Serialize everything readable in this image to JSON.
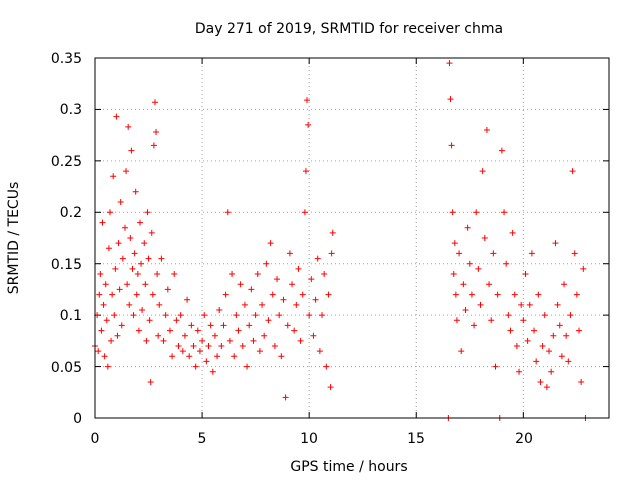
{
  "chart_data": {
    "type": "scatter",
    "title": "Day 271 of 2019, SRMTID for receiver chma",
    "xlabel": "GPS time / hours",
    "ylabel": "SRMTID / TECUs",
    "xlim": [
      0,
      24
    ],
    "ylim": [
      0,
      0.35
    ],
    "x_ticks": [
      0,
      5,
      10,
      15,
      20
    ],
    "x_tick_labels": [
      "0",
      "5",
      "10",
      "15",
      "20"
    ],
    "y_ticks": [
      0,
      0.05,
      0.1,
      0.15,
      0.2,
      0.25,
      0.3,
      0.35
    ],
    "y_tick_labels": [
      "0",
      "0.05",
      "0.1",
      "0.15",
      "0.2",
      "0.25",
      "0.3",
      "0.35"
    ],
    "grid": true,
    "marker": "+",
    "color": "#ff0000",
    "series": [
      {
        "name": "SRMTID",
        "points": [
          [
            0.0,
            0.07
          ],
          [
            0.1,
            0.1
          ],
          [
            0.15,
            0.065
          ],
          [
            0.2,
            0.12
          ],
          [
            0.25,
            0.14
          ],
          [
            0.3,
            0.085
          ],
          [
            0.35,
            0.19
          ],
          [
            0.4,
            0.11
          ],
          [
            0.45,
            0.06
          ],
          [
            0.5,
            0.13
          ],
          [
            0.55,
            0.095
          ],
          [
            0.6,
            0.05
          ],
          [
            0.65,
            0.165
          ],
          [
            0.7,
            0.2
          ],
          [
            0.75,
            0.075
          ],
          [
            0.8,
            0.12
          ],
          [
            0.85,
            0.235
          ],
          [
            0.9,
            0.1
          ],
          [
            0.95,
            0.145
          ],
          [
            1.0,
            0.293
          ],
          [
            1.05,
            0.08
          ],
          [
            1.1,
            0.17
          ],
          [
            1.15,
            0.125
          ],
          [
            1.2,
            0.21
          ],
          [
            1.25,
            0.09
          ],
          [
            1.3,
            0.155
          ],
          [
            1.4,
            0.185
          ],
          [
            1.45,
            0.24
          ],
          [
            1.5,
            0.13
          ],
          [
            1.55,
            0.283
          ],
          [
            1.6,
            0.11
          ],
          [
            1.65,
            0.175
          ],
          [
            1.7,
            0.26
          ],
          [
            1.75,
            0.145
          ],
          [
            1.8,
            0.1
          ],
          [
            1.85,
            0.16
          ],
          [
            1.9,
            0.22
          ],
          [
            1.95,
            0.12
          ],
          [
            2.0,
            0.14
          ],
          [
            2.05,
            0.085
          ],
          [
            2.1,
            0.19
          ],
          [
            2.15,
            0.15
          ],
          [
            2.2,
            0.105
          ],
          [
            2.3,
            0.17
          ],
          [
            2.35,
            0.13
          ],
          [
            2.4,
            0.075
          ],
          [
            2.45,
            0.2
          ],
          [
            2.5,
            0.155
          ],
          [
            2.55,
            0.095
          ],
          [
            2.6,
            0.035
          ],
          [
            2.65,
            0.18
          ],
          [
            2.7,
            0.12
          ],
          [
            2.75,
            0.265
          ],
          [
            2.8,
            0.307
          ],
          [
            2.85,
            0.278
          ],
          [
            2.9,
            0.14
          ],
          [
            2.95,
            0.08
          ],
          [
            3.0,
            0.11
          ],
          [
            3.1,
            0.155
          ],
          [
            3.2,
            0.075
          ],
          [
            3.3,
            0.1
          ],
          [
            3.4,
            0.125
          ],
          [
            3.5,
            0.085
          ],
          [
            3.6,
            0.06
          ],
          [
            3.7,
            0.14
          ],
          [
            3.8,
            0.095
          ],
          [
            3.9,
            0.07
          ],
          [
            4.0,
            0.1
          ],
          [
            4.1,
            0.065
          ],
          [
            4.2,
            0.08
          ],
          [
            4.3,
            0.115
          ],
          [
            4.4,
            0.06
          ],
          [
            4.5,
            0.09
          ],
          [
            4.6,
            0.07
          ],
          [
            4.7,
            0.05
          ],
          [
            4.8,
            0.085
          ],
          [
            4.9,
            0.065
          ],
          [
            5.0,
            0.075
          ],
          [
            5.1,
            0.1
          ],
          [
            5.2,
            0.055
          ],
          [
            5.3,
            0.07
          ],
          [
            5.4,
            0.09
          ],
          [
            5.5,
            0.045
          ],
          [
            5.6,
            0.08
          ],
          [
            5.7,
            0.06
          ],
          [
            5.8,
            0.105
          ],
          [
            5.9,
            0.07
          ],
          [
            6.0,
            0.09
          ],
          [
            6.1,
            0.12
          ],
          [
            6.2,
            0.2
          ],
          [
            6.3,
            0.075
          ],
          [
            6.4,
            0.14
          ],
          [
            6.5,
            0.06
          ],
          [
            6.6,
            0.1
          ],
          [
            6.7,
            0.085
          ],
          [
            6.8,
            0.13
          ],
          [
            6.9,
            0.07
          ],
          [
            7.0,
            0.11
          ],
          [
            7.1,
            0.05
          ],
          [
            7.2,
            0.09
          ],
          [
            7.3,
            0.125
          ],
          [
            7.4,
            0.075
          ],
          [
            7.5,
            0.1
          ],
          [
            7.6,
            0.14
          ],
          [
            7.7,
            0.065
          ],
          [
            7.8,
            0.11
          ],
          [
            7.9,
            0.08
          ],
          [
            8.0,
            0.15
          ],
          [
            8.1,
            0.095
          ],
          [
            8.2,
            0.17
          ],
          [
            8.3,
            0.12
          ],
          [
            8.4,
            0.07
          ],
          [
            8.5,
            0.135
          ],
          [
            8.6,
            0.1
          ],
          [
            8.7,
            0.06
          ],
          [
            8.8,
            0.115
          ],
          [
            8.9,
            0.02
          ],
          [
            9.0,
            0.09
          ],
          [
            9.1,
            0.16
          ],
          [
            9.2,
            0.13
          ],
          [
            9.3,
            0.085
          ],
          [
            9.4,
            0.11
          ],
          [
            9.5,
            0.145
          ],
          [
            9.6,
            0.075
          ],
          [
            9.7,
            0.12
          ],
          [
            9.8,
            0.2
          ],
          [
            9.85,
            0.24
          ],
          [
            9.9,
            0.309
          ],
          [
            9.95,
            0.285
          ],
          [
            10.0,
            0.1
          ],
          [
            10.1,
            0.135
          ],
          [
            10.2,
            0.08
          ],
          [
            10.3,
            0.115
          ],
          [
            10.4,
            0.155
          ],
          [
            10.5,
            0.065
          ],
          [
            10.6,
            0.1
          ],
          [
            10.7,
            0.14
          ],
          [
            10.8,
            0.05
          ],
          [
            10.9,
            0.12
          ],
          [
            11.0,
            0.03
          ],
          [
            11.05,
            0.16
          ],
          [
            11.1,
            0.18
          ],
          [
            16.5,
            0.0
          ],
          [
            16.55,
            0.345
          ],
          [
            16.6,
            0.31
          ],
          [
            16.65,
            0.265
          ],
          [
            16.7,
            0.2
          ],
          [
            16.75,
            0.14
          ],
          [
            16.8,
            0.17
          ],
          [
            16.85,
            0.12
          ],
          [
            16.9,
            0.095
          ],
          [
            17.0,
            0.16
          ],
          [
            17.1,
            0.065
          ],
          [
            17.2,
            0.13
          ],
          [
            17.3,
            0.105
          ],
          [
            17.4,
            0.185
          ],
          [
            17.5,
            0.15
          ],
          [
            17.6,
            0.12
          ],
          [
            17.7,
            0.09
          ],
          [
            17.8,
            0.2
          ],
          [
            17.9,
            0.145
          ],
          [
            18.0,
            0.11
          ],
          [
            18.1,
            0.24
          ],
          [
            18.2,
            0.175
          ],
          [
            18.3,
            0.28
          ],
          [
            18.4,
            0.13
          ],
          [
            18.5,
            0.095
          ],
          [
            18.6,
            0.16
          ],
          [
            18.7,
            0.05
          ],
          [
            18.8,
            0.12
          ],
          [
            18.9,
            0.0
          ],
          [
            19.0,
            0.26
          ],
          [
            19.1,
            0.2
          ],
          [
            19.2,
            0.15
          ],
          [
            19.3,
            0.1
          ],
          [
            19.4,
            0.085
          ],
          [
            19.5,
            0.18
          ],
          [
            19.6,
            0.12
          ],
          [
            19.7,
            0.07
          ],
          [
            19.8,
            0.045
          ],
          [
            19.9,
            0.11
          ],
          [
            20.0,
            0.095
          ],
          [
            20.1,
            0.14
          ],
          [
            20.2,
            0.075
          ],
          [
            20.3,
            0.11
          ],
          [
            20.4,
            0.16
          ],
          [
            20.5,
            0.085
          ],
          [
            20.6,
            0.055
          ],
          [
            20.7,
            0.12
          ],
          [
            20.8,
            0.035
          ],
          [
            20.9,
            0.07
          ],
          [
            21.0,
            0.1
          ],
          [
            21.1,
            0.03
          ],
          [
            21.2,
            0.065
          ],
          [
            21.3,
            0.045
          ],
          [
            21.4,
            0.08
          ],
          [
            21.5,
            0.17
          ],
          [
            21.6,
            0.11
          ],
          [
            21.7,
            0.09
          ],
          [
            21.8,
            0.06
          ],
          [
            21.9,
            0.13
          ],
          [
            22.0,
            0.08
          ],
          [
            22.1,
            0.055
          ],
          [
            22.2,
            0.1
          ],
          [
            22.3,
            0.24
          ],
          [
            22.4,
            0.16
          ],
          [
            22.5,
            0.12
          ],
          [
            22.6,
            0.085
          ],
          [
            22.7,
            0.035
          ],
          [
            22.8,
            0.145
          ],
          [
            22.9,
            0.0
          ]
        ]
      }
    ]
  }
}
